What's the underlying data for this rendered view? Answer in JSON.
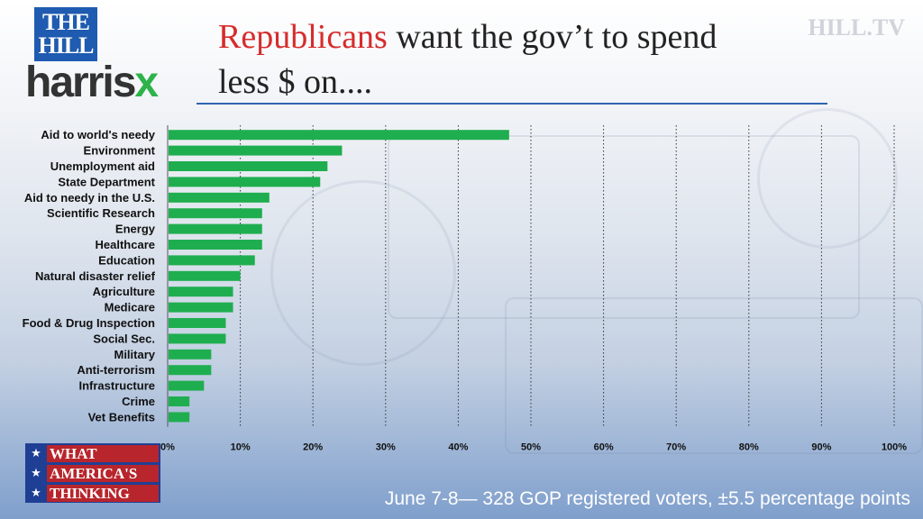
{
  "header": {
    "logo_hill": [
      "THE",
      "HILL"
    ],
    "logo_harris": "harris",
    "logo_harris_x": "x",
    "watermark": "HILL.TV",
    "title_highlight": "Republicans",
    "title_line1_rest": " want the gov’t to spend",
    "title_line2": "less $ on...."
  },
  "colors": {
    "bar": "#1fae4f",
    "title_highlight": "#d62c2c",
    "gridline": "#333333"
  },
  "chart_data": {
    "type": "bar",
    "orientation": "horizontal",
    "categories": [
      "Aid to world's needy",
      "Environment",
      "Unemployment aid",
      "State Department",
      "Aid to needy in the U.S.",
      "Scientific Research",
      "Energy",
      "Healthcare",
      "Education",
      "Natural disaster relief",
      "Agriculture",
      "Medicare",
      "Food & Drug Inspection",
      "Social Sec.",
      "Military",
      "Anti-terrorism",
      "Infrastructure",
      "Crime",
      "Vet Benefits"
    ],
    "values": [
      47,
      24,
      22,
      21,
      14,
      13,
      13,
      13,
      12,
      10,
      9,
      9,
      8,
      8,
      6,
      6,
      5,
      3,
      3
    ],
    "xlim": [
      0,
      100
    ],
    "xticks": [
      "0%",
      "10%",
      "20%",
      "30%",
      "40%",
      "50%",
      "60%",
      "70%",
      "80%",
      "90%",
      "100%"
    ],
    "grid": "vertical-dotted"
  },
  "badge": {
    "lines": [
      "WHAT",
      "AMERICA'S",
      "THINKING"
    ],
    "stars": [
      "★",
      "★",
      "★"
    ]
  },
  "footnote": "June 7-8— 328 GOP registered voters, ±5.5 percentage points"
}
